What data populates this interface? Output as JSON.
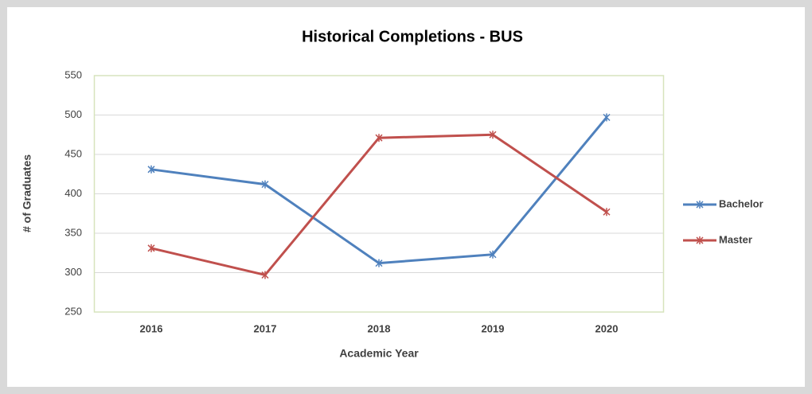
{
  "chart_data": {
    "type": "line",
    "title": "Historical Completions - BUS",
    "x_label": "Academic Year",
    "y_label": "# of Graduates",
    "categories": [
      "2016",
      "2017",
      "2018",
      "2019",
      "2020"
    ],
    "series": [
      {
        "name": "Bachelor",
        "color": "#4f81bd",
        "values": [
          431,
          412,
          312,
          323,
          497
        ]
      },
      {
        "name": "Master",
        "color": "#c0504d",
        "values": [
          331,
          297,
          471,
          475,
          377
        ]
      }
    ],
    "ylim": [
      250,
      550
    ],
    "yticks": [
      250,
      300,
      350,
      400,
      450,
      500,
      550
    ],
    "grid": true,
    "legend": "right"
  }
}
